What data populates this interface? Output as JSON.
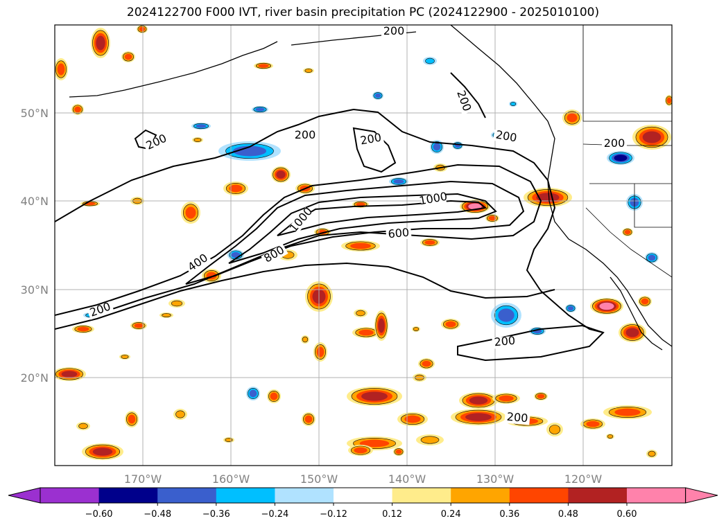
{
  "title": "2024122700 F000 IVT, river basin precipitation PC (2024122900 - 2025010100)",
  "map": {
    "lon_ticks": [
      "170°W",
      "160°W",
      "150°W",
      "140°W",
      "130°W",
      "120°W"
    ],
    "lat_ticks": [
      "50°N",
      "40°N",
      "30°N",
      "20°N"
    ],
    "gridlines": true,
    "tick_color": "#808080"
  },
  "ivt_contours": {
    "levels": [
      200,
      400,
      600,
      800,
      1000
    ],
    "labels": [
      "200",
      "200",
      "200",
      "200",
      "200",
      "200",
      "200",
      "200",
      "200",
      "200",
      "400",
      "600",
      "800",
      "1000",
      "1000"
    ]
  },
  "colorbar": {
    "ticks": [
      "−0.60",
      "−0.48",
      "−0.36",
      "−0.24",
      "−0.12",
      "0.12",
      "0.24",
      "0.36",
      "0.48",
      "0.60"
    ],
    "colors": [
      "#9b30d0",
      "#00008b",
      "#3a5fcd",
      "#00bfff",
      "#b0e2ff",
      "#ffffff",
      "#ffec8b",
      "#ffa500",
      "#ff4500",
      "#b22222",
      "#ff82ab"
    ],
    "extend": "both"
  },
  "shading": {
    "pos_colors": [
      "#ffec8b",
      "#ffa500",
      "#ff4500",
      "#b22222",
      "#ff82ab"
    ],
    "neg_colors": [
      "#b0e2ff",
      "#00bfff",
      "#3a5fcd",
      "#00008b"
    ]
  }
}
